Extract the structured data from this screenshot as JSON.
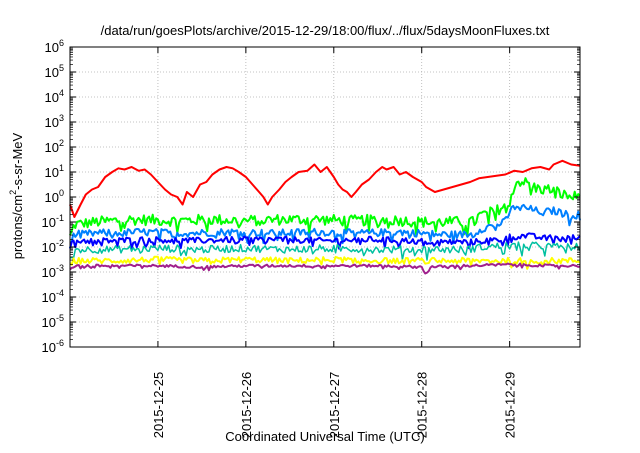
{
  "chart_data": {
    "type": "line",
    "title": "/data/run/goesPlots/archive/2015-12-29/18:00/flux/../flux/5daysMoonFluxes.txt",
    "xlabel": "Coordinated Universal Time (UTC)",
    "ylabel_parts": {
      "base": "protons/cm",
      "exp": "2",
      "rest": "-s-sr-MeV"
    },
    "yscale": "log",
    "ylim": [
      1e-06,
      1000000.0
    ],
    "xlim_days": [
      0,
      5.8
    ],
    "grid": true,
    "y_ticks": [
      {
        "v": -6,
        "base": "10",
        "exp": "-6"
      },
      {
        "v": -5,
        "base": "10",
        "exp": "-5"
      },
      {
        "v": -4,
        "base": "10",
        "exp": "-4"
      },
      {
        "v": -3,
        "base": "10",
        "exp": "-3"
      },
      {
        "v": -2,
        "base": "10",
        "exp": "-2"
      },
      {
        "v": -1,
        "base": "10",
        "exp": "-1"
      },
      {
        "v": 0,
        "base": "10",
        "exp": "0"
      },
      {
        "v": 1,
        "base": "10",
        "exp": "1"
      },
      {
        "v": 2,
        "base": "10",
        "exp": "2"
      },
      {
        "v": 3,
        "base": "10",
        "exp": "3"
      },
      {
        "v": 4,
        "base": "10",
        "exp": "4"
      },
      {
        "v": 5,
        "base": "10",
        "exp": "5"
      },
      {
        "v": 6,
        "base": "10",
        "exp": "6"
      }
    ],
    "x_ticks": [
      {
        "t": 1,
        "label": "2015-12-25"
      },
      {
        "t": 2,
        "label": "2015-12-26"
      },
      {
        "t": 3,
        "label": "2015-12-27"
      },
      {
        "t": 4,
        "label": "2015-12-28"
      },
      {
        "t": 5,
        "label": "2015-12-29"
      }
    ],
    "series": [
      {
        "color": "#ff0000",
        "width": 2,
        "points": [
          [
            0.0,
            -0.3
          ],
          [
            0.05,
            -0.8
          ],
          [
            0.12,
            -0.3
          ],
          [
            0.18,
            0.1
          ],
          [
            0.25,
            0.3
          ],
          [
            0.32,
            0.4
          ],
          [
            0.4,
            0.8
          ],
          [
            0.48,
            1.0
          ],
          [
            0.55,
            1.15
          ],
          [
            0.62,
            1.1
          ],
          [
            0.7,
            1.2
          ],
          [
            0.78,
            1.05
          ],
          [
            0.85,
            1.1
          ],
          [
            0.92,
            0.9
          ],
          [
            1.0,
            0.6
          ],
          [
            1.08,
            0.3
          ],
          [
            1.15,
            0.1
          ],
          [
            1.22,
            0.0
          ],
          [
            1.28,
            -0.3
          ],
          [
            1.33,
            0.2
          ],
          [
            1.4,
            0.0
          ],
          [
            1.48,
            0.5
          ],
          [
            1.55,
            0.6
          ],
          [
            1.62,
            0.9
          ],
          [
            1.7,
            1.1
          ],
          [
            1.78,
            1.2
          ],
          [
            1.85,
            1.15
          ],
          [
            1.92,
            1.0
          ],
          [
            2.0,
            0.8
          ],
          [
            2.05,
            0.6
          ],
          [
            2.1,
            0.4
          ],
          [
            2.15,
            0.2
          ],
          [
            2.2,
            0.0
          ],
          [
            2.25,
            -0.3
          ],
          [
            2.3,
            0.0
          ],
          [
            2.38,
            0.3
          ],
          [
            2.45,
            0.6
          ],
          [
            2.52,
            0.8
          ],
          [
            2.6,
            1.0
          ],
          [
            2.7,
            1.05
          ],
          [
            2.78,
            1.3
          ],
          [
            2.85,
            1.0
          ],
          [
            2.92,
            1.2
          ],
          [
            3.0,
            0.8
          ],
          [
            3.05,
            0.5
          ],
          [
            3.1,
            0.3
          ],
          [
            3.15,
            0.2
          ],
          [
            3.2,
            0.0
          ],
          [
            3.25,
            0.2
          ],
          [
            3.32,
            0.5
          ],
          [
            3.4,
            0.7
          ],
          [
            3.48,
            1.0
          ],
          [
            3.55,
            1.2
          ],
          [
            3.6,
            1.1
          ],
          [
            3.68,
            1.2
          ],
          [
            3.75,
            0.9
          ],
          [
            3.82,
            1.0
          ],
          [
            3.9,
            0.8
          ],
          [
            4.0,
            0.6
          ],
          [
            4.05,
            0.4
          ],
          [
            4.1,
            0.3
          ],
          [
            4.15,
            0.2
          ],
          [
            4.25,
            0.3
          ],
          [
            4.35,
            0.4
          ],
          [
            4.45,
            0.5
          ],
          [
            4.55,
            0.6
          ],
          [
            4.65,
            0.75
          ],
          [
            4.75,
            0.8
          ],
          [
            4.85,
            0.85
          ],
          [
            4.95,
            0.9
          ],
          [
            5.05,
            1.05
          ],
          [
            5.15,
            1.0
          ],
          [
            5.25,
            1.15
          ],
          [
            5.35,
            1.2
          ],
          [
            5.45,
            1.1
          ],
          [
            5.5,
            1.3
          ],
          [
            5.6,
            1.45
          ],
          [
            5.7,
            1.3
          ],
          [
            5.8,
            1.25
          ]
        ]
      },
      {
        "color": "#00ff00",
        "width": 2,
        "noise": 0.22,
        "points": [
          [
            0.0,
            -1.6
          ],
          [
            0.05,
            -1.1
          ],
          [
            0.3,
            -1.0
          ],
          [
            0.7,
            -0.9
          ],
          [
            1.2,
            -0.95
          ],
          [
            1.6,
            -0.9
          ],
          [
            2.0,
            -0.95
          ],
          [
            2.4,
            -0.9
          ],
          [
            2.8,
            -0.9
          ],
          [
            3.2,
            -0.95
          ],
          [
            3.6,
            -0.9
          ],
          [
            4.0,
            -1.0
          ],
          [
            4.4,
            -1.0
          ],
          [
            4.6,
            -1.0
          ],
          [
            4.65,
            -0.75
          ],
          [
            4.75,
            -0.65
          ],
          [
            4.85,
            -0.55
          ],
          [
            4.95,
            -0.3
          ],
          [
            5.0,
            0.0
          ],
          [
            5.05,
            0.4
          ],
          [
            5.1,
            0.65
          ],
          [
            5.2,
            0.55
          ],
          [
            5.3,
            0.35
          ],
          [
            5.4,
            0.3
          ],
          [
            5.5,
            0.3
          ],
          [
            5.6,
            0.1
          ],
          [
            5.7,
            0.0
          ],
          [
            5.8,
            0.05
          ]
        ]
      },
      {
        "color": "#0080ff",
        "width": 2,
        "noise": 0.15,
        "points": [
          [
            0.0,
            -1.9
          ],
          [
            0.05,
            -1.5
          ],
          [
            0.3,
            -1.45
          ],
          [
            0.8,
            -1.4
          ],
          [
            1.3,
            -1.45
          ],
          [
            1.8,
            -1.4
          ],
          [
            2.3,
            -1.45
          ],
          [
            2.8,
            -1.4
          ],
          [
            3.3,
            -1.45
          ],
          [
            3.8,
            -1.4
          ],
          [
            4.2,
            -1.5
          ],
          [
            4.6,
            -1.5
          ],
          [
            4.65,
            -1.3
          ],
          [
            4.75,
            -1.2
          ],
          [
            4.85,
            -1.1
          ],
          [
            4.95,
            -1.0
          ],
          [
            5.0,
            -0.6
          ],
          [
            5.05,
            -0.4
          ],
          [
            5.1,
            -0.35
          ],
          [
            5.2,
            -0.45
          ],
          [
            5.3,
            -0.55
          ],
          [
            5.4,
            -0.6
          ],
          [
            5.5,
            -0.55
          ],
          [
            5.6,
            -0.65
          ],
          [
            5.7,
            -0.75
          ],
          [
            5.8,
            -0.7
          ]
        ]
      },
      {
        "color": "#0000ff",
        "width": 2,
        "noise": 0.12,
        "points": [
          [
            0.0,
            -2.0
          ],
          [
            0.05,
            -1.75
          ],
          [
            0.4,
            -1.75
          ],
          [
            0.9,
            -1.7
          ],
          [
            1.4,
            -1.75
          ],
          [
            1.9,
            -1.7
          ],
          [
            2.4,
            -1.7
          ],
          [
            2.9,
            -1.75
          ],
          [
            3.4,
            -1.7
          ],
          [
            3.9,
            -1.75
          ],
          [
            4.3,
            -1.8
          ],
          [
            4.6,
            -1.8
          ],
          [
            4.7,
            -1.75
          ],
          [
            4.9,
            -1.7
          ],
          [
            5.0,
            -1.6
          ],
          [
            5.2,
            -1.55
          ],
          [
            5.4,
            -1.65
          ],
          [
            5.6,
            -1.6
          ],
          [
            5.8,
            -1.65
          ]
        ]
      },
      {
        "color": "#00c0a0",
        "width": 1.5,
        "noise": 0.15,
        "points": [
          [
            0.0,
            -2.3
          ],
          [
            0.05,
            -2.1
          ],
          [
            0.5,
            -2.1
          ],
          [
            1.0,
            -2.05
          ],
          [
            1.5,
            -2.1
          ],
          [
            2.0,
            -2.05
          ],
          [
            2.5,
            -2.1
          ],
          [
            3.0,
            -2.05
          ],
          [
            3.5,
            -2.1
          ],
          [
            4.0,
            -2.1
          ],
          [
            4.5,
            -2.1
          ],
          [
            4.7,
            -2.0
          ],
          [
            5.0,
            -1.95
          ],
          [
            5.3,
            -1.95
          ],
          [
            5.6,
            -2.0
          ],
          [
            5.8,
            -2.0
          ]
        ]
      },
      {
        "color": "#ffff00",
        "width": 2,
        "noise": 0.12,
        "points": [
          [
            0.0,
            -2.6
          ],
          [
            0.05,
            -2.55
          ],
          [
            0.5,
            -2.55
          ],
          [
            1.0,
            -2.5
          ],
          [
            1.5,
            -2.55
          ],
          [
            2.0,
            -2.5
          ],
          [
            2.5,
            -2.55
          ],
          [
            3.0,
            -2.5
          ],
          [
            3.5,
            -2.55
          ],
          [
            4.0,
            -2.55
          ],
          [
            4.5,
            -2.55
          ],
          [
            5.0,
            -2.55
          ],
          [
            5.5,
            -2.55
          ],
          [
            5.8,
            -2.55
          ]
        ]
      },
      {
        "color": "#a0208c",
        "width": 2,
        "noise": 0.05,
        "points": [
          [
            0.0,
            -2.9
          ],
          [
            0.05,
            -2.75
          ],
          [
            0.5,
            -2.75
          ],
          [
            1.0,
            -2.75
          ],
          [
            1.5,
            -2.8
          ],
          [
            2.0,
            -2.75
          ],
          [
            2.5,
            -2.75
          ],
          [
            3.0,
            -2.75
          ],
          [
            3.5,
            -2.75
          ],
          [
            4.0,
            -2.8
          ],
          [
            4.05,
            -3.1
          ],
          [
            4.1,
            -2.8
          ],
          [
            4.5,
            -2.75
          ],
          [
            5.0,
            -2.7
          ],
          [
            5.5,
            -2.75
          ],
          [
            5.8,
            -2.75
          ]
        ]
      }
    ]
  }
}
